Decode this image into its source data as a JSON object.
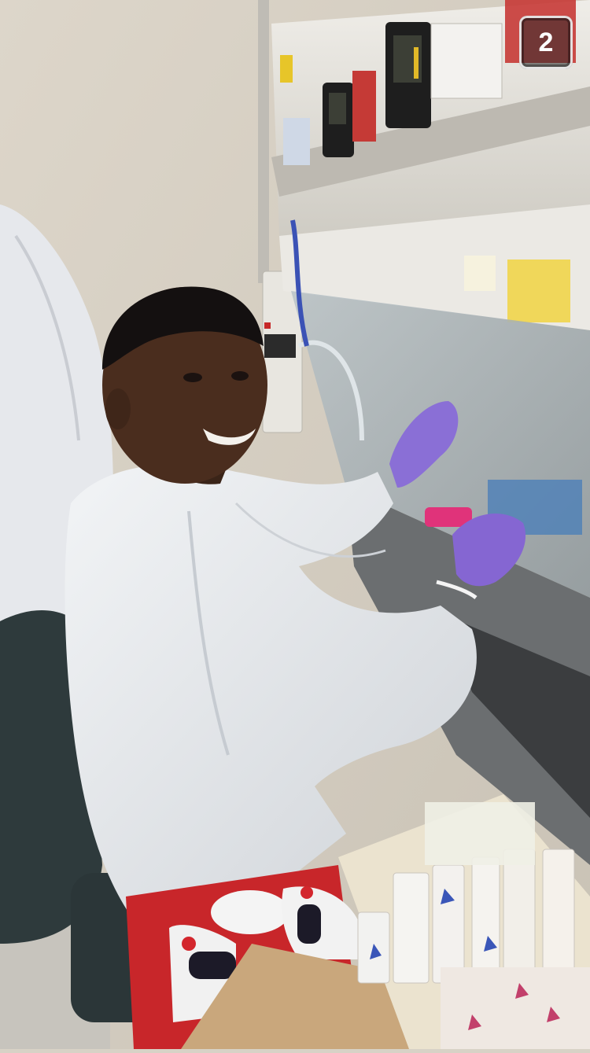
{
  "story": {
    "snap_counter": "2"
  },
  "photo": {
    "description_icon": "photo-content",
    "colors": {
      "wall": "#d9d3c7",
      "lab_coat": "#e9ebee",
      "gloves": "#8a6fd6",
      "hood_frame": "#e8e6e0",
      "tray_red": "#c8262a",
      "box_cardboard": "#c9a77c"
    }
  }
}
